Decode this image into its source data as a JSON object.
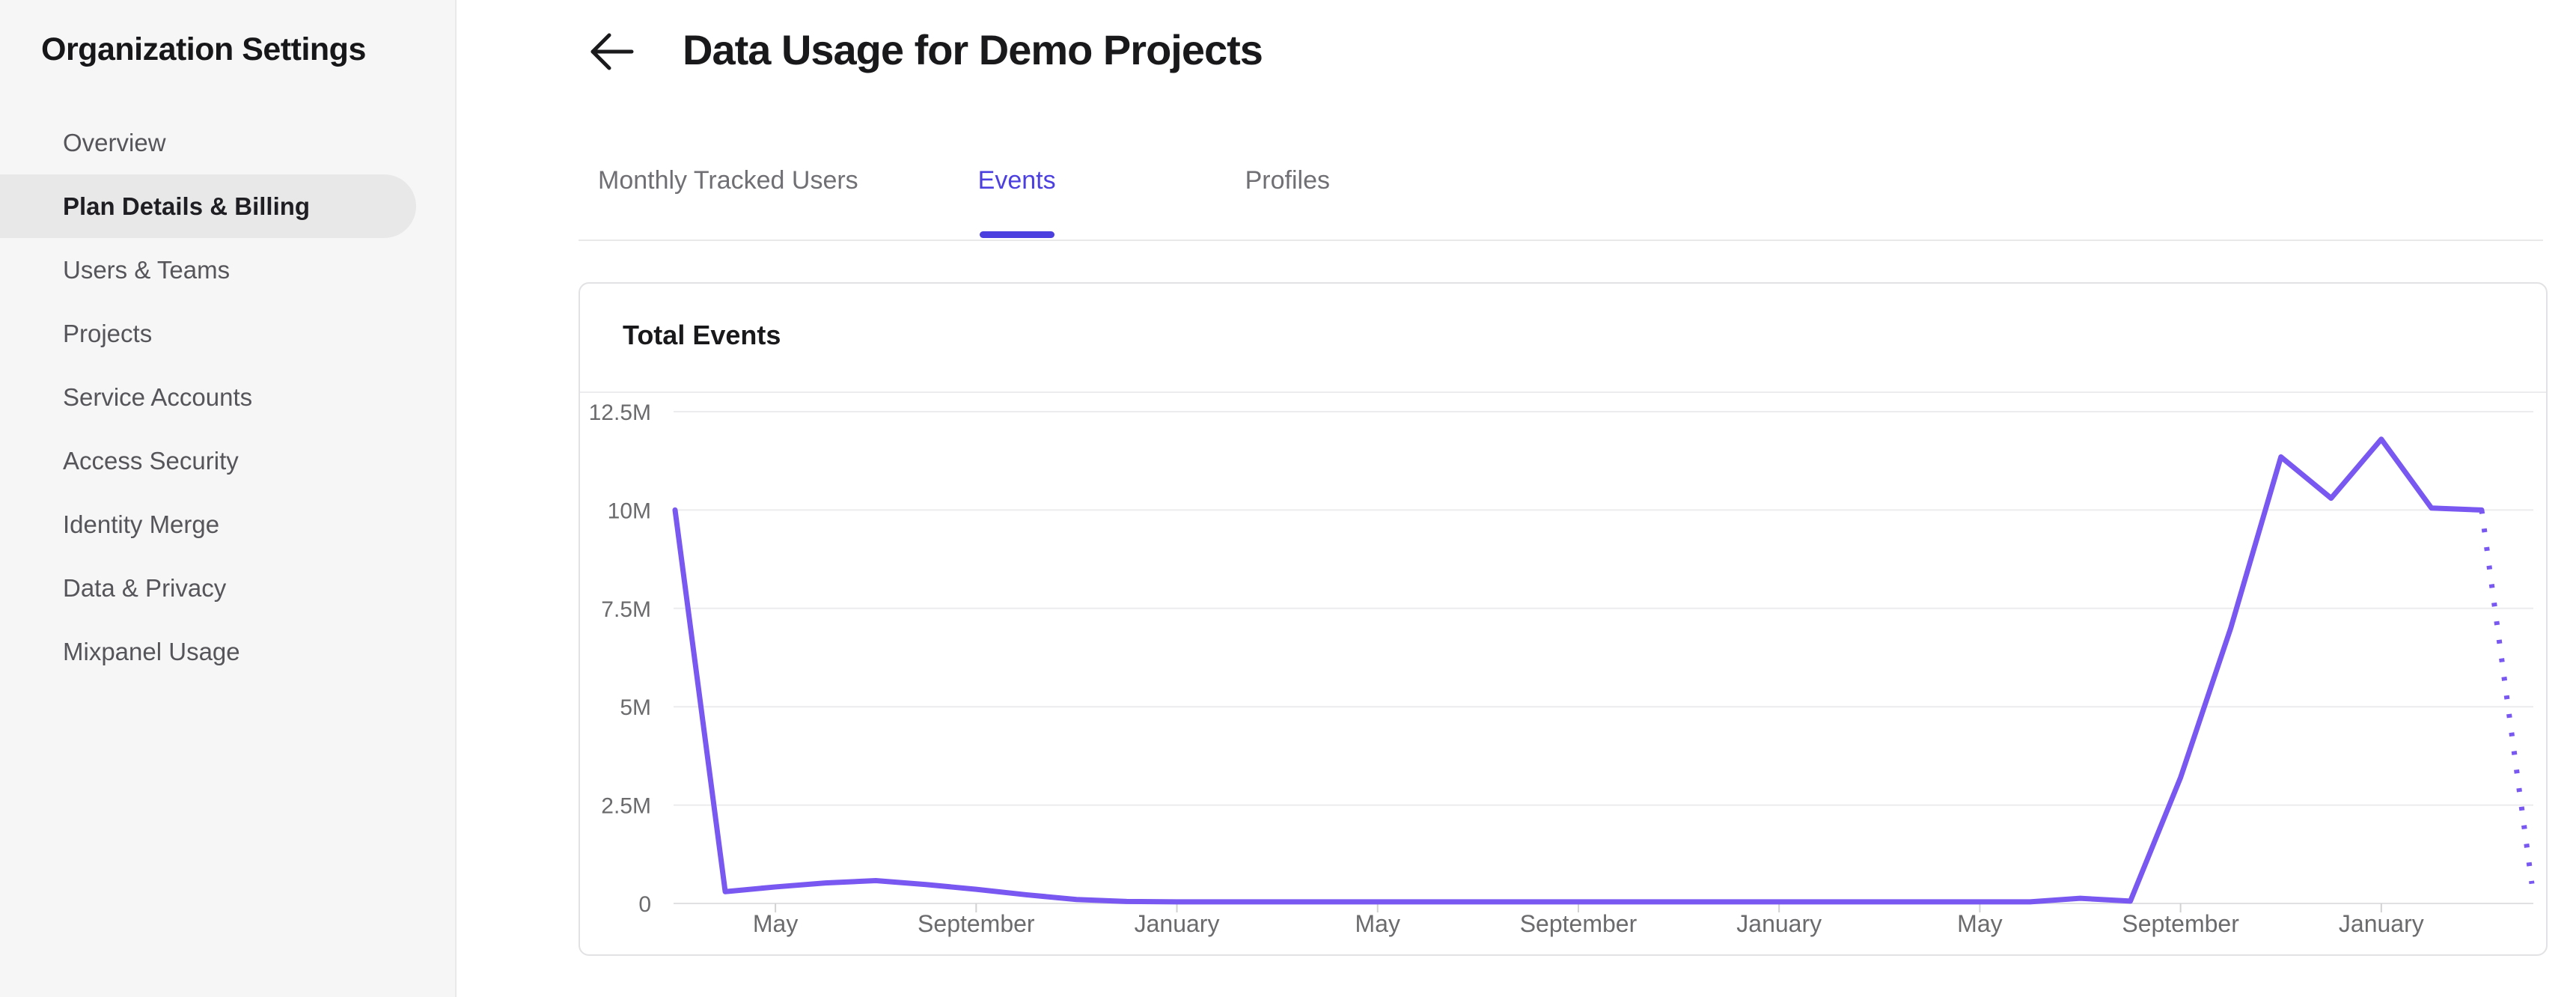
{
  "sidebar": {
    "title": "Organization Settings",
    "items": [
      {
        "label": "Overview",
        "selected": false
      },
      {
        "label": "Plan Details & Billing",
        "selected": true
      },
      {
        "label": "Users & Teams",
        "selected": false
      },
      {
        "label": "Projects",
        "selected": false
      },
      {
        "label": "Service Accounts",
        "selected": false
      },
      {
        "label": "Access Security",
        "selected": false
      },
      {
        "label": "Identity Merge",
        "selected": false
      },
      {
        "label": "Data & Privacy",
        "selected": false
      },
      {
        "label": "Mixpanel Usage",
        "selected": false
      }
    ]
  },
  "header": {
    "back_icon": "arrow-left-icon",
    "title": "Data Usage for Demo Projects"
  },
  "tabs": [
    {
      "label": "Monthly Tracked Users",
      "active": false
    },
    {
      "label": "Events",
      "active": true
    },
    {
      "label": "Profiles",
      "active": false
    }
  ],
  "card": {
    "title": "Total Events"
  },
  "colors": {
    "accent_purple": "#4b3fe0",
    "line_purple": "#7858f0",
    "grid": "#ececee",
    "axis_line": "#e0e0e2",
    "tick": "#d2d2d4",
    "axis_text": "#6b6b6e",
    "sidebar_bg": "#f6f6f7",
    "selected_pill": "#e8e8e9"
  },
  "chart_data": {
    "type": "line",
    "title": "Total Events",
    "xlabel": "",
    "ylabel": "",
    "grid": "horizontal",
    "legend": "none",
    "x_interval": "monthly",
    "x_tick_labels": [
      "May",
      "September",
      "January",
      "May",
      "September",
      "January",
      "May",
      "September",
      "January"
    ],
    "x_tick_month_indices": [
      2,
      6,
      10,
      14,
      18,
      22,
      26,
      30,
      34
    ],
    "y_tick_labels": [
      "0",
      "2.5M",
      "5M",
      "7.5M",
      "10M",
      "12.5M"
    ],
    "ylim_millions": [
      0,
      12.5
    ],
    "series": [
      {
        "name": "Total Events",
        "unit": "events, millions",
        "values_millions": [
          10,
          0.3,
          0.42,
          0.52,
          0.58,
          0.48,
          0.36,
          0.22,
          0.1,
          0.05,
          0.04,
          0.04,
          0.04,
          0.04,
          0.04,
          0.04,
          0.04,
          0.04,
          0.04,
          0.04,
          0.04,
          0.04,
          0.04,
          0.04,
          0.04,
          0.04,
          0.04,
          0.04,
          0.13,
          0.06,
          3.2,
          7.0,
          11.35,
          10.3,
          11.8,
          10.05,
          10.0,
          0.5
        ]
      }
    ],
    "projected_segment": {
      "from_index": 36,
      "to_index": 37,
      "style": "dotted"
    }
  }
}
